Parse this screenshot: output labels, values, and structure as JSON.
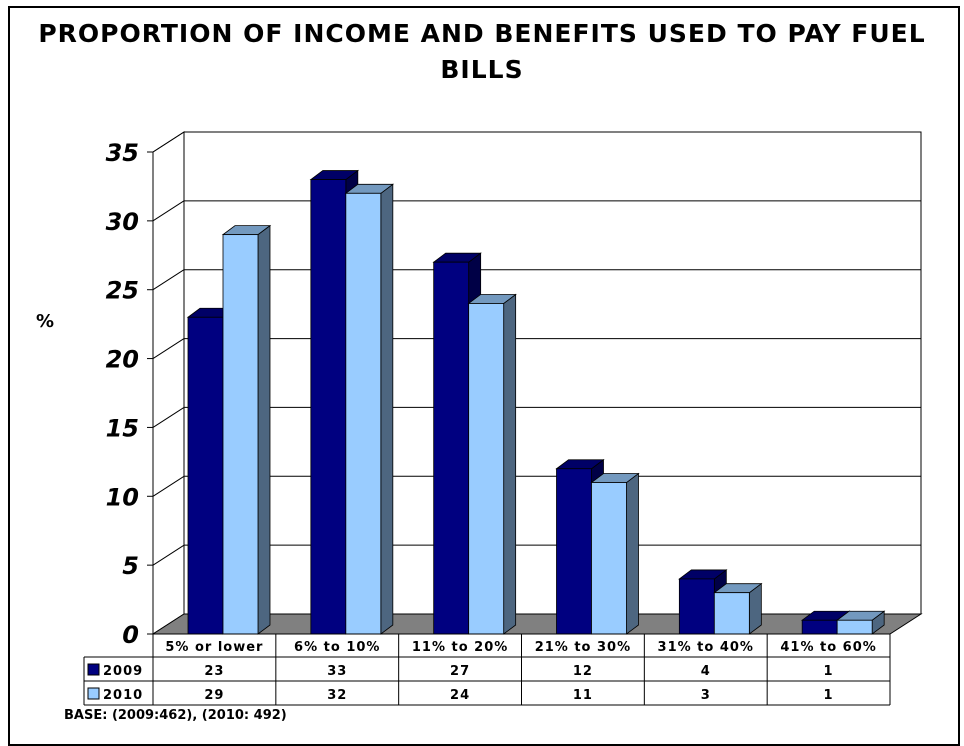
{
  "chart_data": {
    "type": "bar",
    "title": "PROPORTION OF INCOME AND BENEFITS USED TO PAY FUEL BILLS",
    "ylabel": "%",
    "xlabel": "",
    "ylim": [
      0,
      35
    ],
    "yticks": [
      0,
      5,
      10,
      15,
      20,
      25,
      30,
      35
    ],
    "grid": true,
    "style": "3d-clustered-bar-with-data-table",
    "categories": [
      "5% or lower",
      "6% to 10%",
      "11% to 20%",
      "21% to 30%",
      "31% to 40%",
      "41% to 60%"
    ],
    "series": [
      {
        "name": "2009",
        "values": [
          23,
          33,
          27,
          12,
          4,
          1
        ],
        "color": "#000080"
      },
      {
        "name": "2010",
        "values": [
          29,
          32,
          24,
          11,
          3,
          1
        ],
        "color": "#99CCFF"
      }
    ],
    "table_values": {
      "2009": [
        "23",
        "33",
        "27",
        "12",
        "4",
        "1"
      ],
      "2010": [
        "29",
        "32",
        "24",
        "11",
        "3",
        "1"
      ]
    },
    "legend_placement": "data-table-left",
    "footnote": "BASE: (2009:462), (2010: 492)"
  }
}
